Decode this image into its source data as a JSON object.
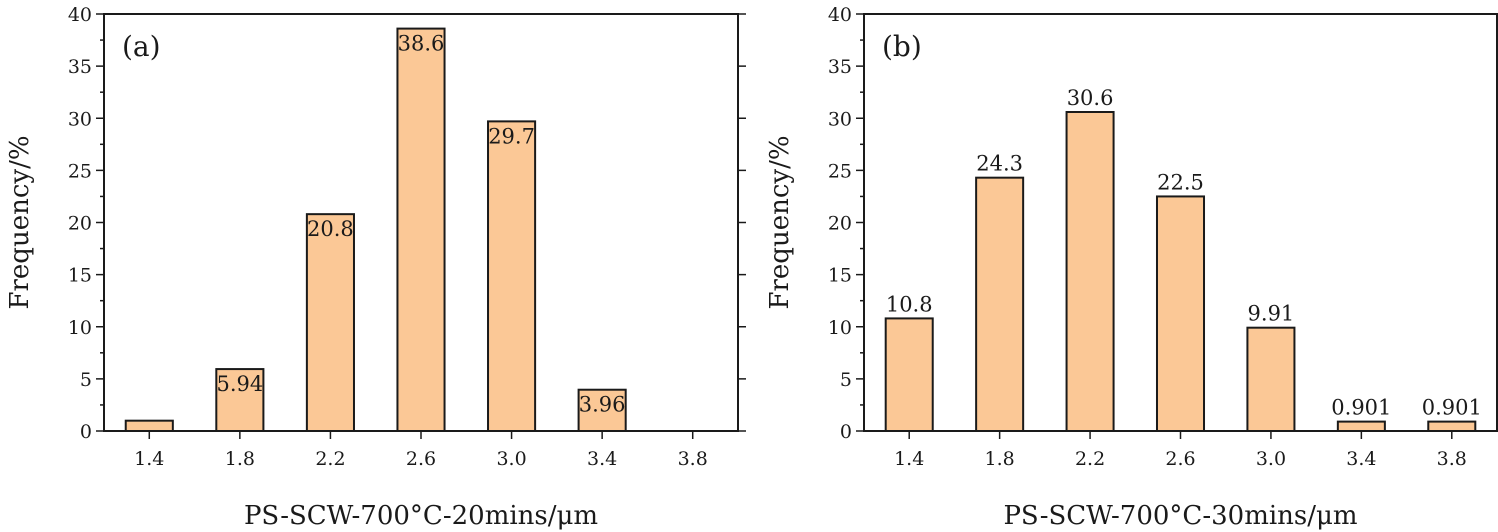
{
  "chart_data": [
    {
      "type": "bar",
      "panel_label": "(a)",
      "title": "",
      "xlabel": "PS-SCW-700°C-20mins/μm",
      "ylabel": "Frequency/%",
      "categories": [
        "1.4",
        "1.8",
        "2.2",
        "2.6",
        "3.0",
        "3.4",
        "3.8"
      ],
      "values": [
        0.99,
        5.94,
        20.8,
        38.6,
        29.7,
        3.96,
        0
      ],
      "value_labels": [
        "",
        "5.94",
        "20.8",
        "38.6",
        "29.7",
        "3.96",
        ""
      ],
      "value_label_position": "inside-top",
      "ylim": [
        0,
        40
      ],
      "yticks": [
        "0",
        "5",
        "10",
        "15",
        "20",
        "25",
        "30",
        "35",
        "40"
      ],
      "grid": false,
      "legend": "none",
      "bar_color": "#fbc896"
    },
    {
      "type": "bar",
      "panel_label": "(b)",
      "title": "",
      "xlabel": "PS-SCW-700°C-30mins/μm",
      "ylabel": "Frequency/%",
      "categories": [
        "1.4",
        "1.8",
        "2.2",
        "2.6",
        "3.0",
        "3.4",
        "3.8"
      ],
      "values": [
        10.8,
        24.3,
        30.6,
        22.5,
        9.91,
        0.901,
        0.901
      ],
      "value_labels": [
        "10.8",
        "24.3",
        "30.6",
        "22.5",
        "9.91",
        "0.901",
        "0.901"
      ],
      "value_label_position": "above",
      "ylim": [
        0,
        40
      ],
      "yticks": [
        "0",
        "5",
        "10",
        "15",
        "20",
        "25",
        "30",
        "35",
        "40"
      ],
      "grid": false,
      "legend": "none",
      "bar_color": "#fbc896"
    }
  ]
}
